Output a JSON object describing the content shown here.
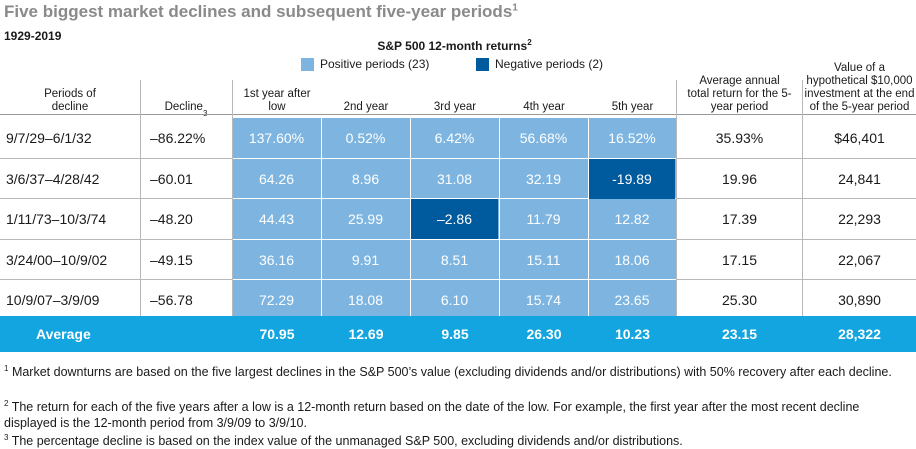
{
  "title": "Five biggest market declines and subsequent five-year periods",
  "title_note": "1",
  "subtitle": "1929-2019",
  "returns_header": "S&P 500 12-month returns",
  "returns_header_note": "2",
  "colors": {
    "positive": "#7db5e0",
    "negative": "#005a9e",
    "average": "#12a5e0",
    "grid": "#b8b8b8"
  },
  "legend": [
    {
      "label": "Positive periods (23)",
      "color": "#7db5e0"
    },
    {
      "label": "Negative periods (2)",
      "color": "#005a9e"
    }
  ],
  "columns": {
    "period": "Periods of decline",
    "decline": "Decline",
    "decline_note": "3",
    "years": [
      "1st year after low",
      "2nd year",
      "3rd year",
      "4th year",
      "5th year"
    ],
    "avg_return": "Average annual total return for the 5-year period",
    "value": "Value of a hypothetical $10,000 investment at the end of the 5-year period"
  },
  "chart_data": {
    "type": "table",
    "title": "Five biggest market declines and subsequent five-year periods",
    "subtitle": "1929-2019",
    "rows": [
      {
        "period": "9/7/29–6/1/32",
        "decline": "–86.22%",
        "years": [
          "137.60%",
          "0.52%",
          "6.42%",
          "56.68%",
          "16.52%"
        ],
        "avg_return": "35.93%",
        "value": "$46,401"
      },
      {
        "period": "3/6/37–4/28/42",
        "decline": "–60.01",
        "years": [
          "64.26",
          "8.96",
          "31.08",
          "32.19",
          "-19.89"
        ],
        "avg_return": "19.96",
        "value": "24,841"
      },
      {
        "period": "1/11/73–10/3/74",
        "decline": "–48.20",
        "years": [
          "44.43",
          "25.99",
          "–2.86",
          "11.79",
          "12.82"
        ],
        "avg_return": "17.39",
        "value": "22,293"
      },
      {
        "period": "3/24/00–10/9/02",
        "decline": "–49.15",
        "years": [
          "36.16",
          "9.91",
          "8.51",
          "15.11",
          "18.06"
        ],
        "avg_return": "17.15",
        "value": "22,067"
      },
      {
        "period": "10/9/07–3/9/09",
        "decline": "–56.78",
        "years": [
          "72.29",
          "18.08",
          "6.10",
          "15.74",
          "23.65"
        ],
        "avg_return": "25.30",
        "value": "30,890"
      }
    ],
    "negative_cells": [
      [
        1,
        4
      ],
      [
        2,
        2
      ]
    ],
    "average": {
      "label": "Average",
      "years": [
        "70.95",
        "12.69",
        "9.85",
        "26.30",
        "10.23"
      ],
      "avg_return": "23.15",
      "value": "28,322"
    }
  },
  "footnotes": [
    {
      "mark": "1",
      "text": "Market downturns are based on the five largest declines in the S&P 500’s value (excluding dividends and/or distributions) with 50% recovery after each decline."
    },
    {
      "mark": "2",
      "text": "The return for each of the five years after a low is a 12-month return based on the date of the low. For example, the first year after the most recent decline displayed is the 12-month period from 3/9/09 to 3/9/10."
    },
    {
      "mark": "3",
      "text": "The percentage decline is based on the index value of the unmanaged S&P 500, excluding dividends and/or distributions."
    }
  ]
}
